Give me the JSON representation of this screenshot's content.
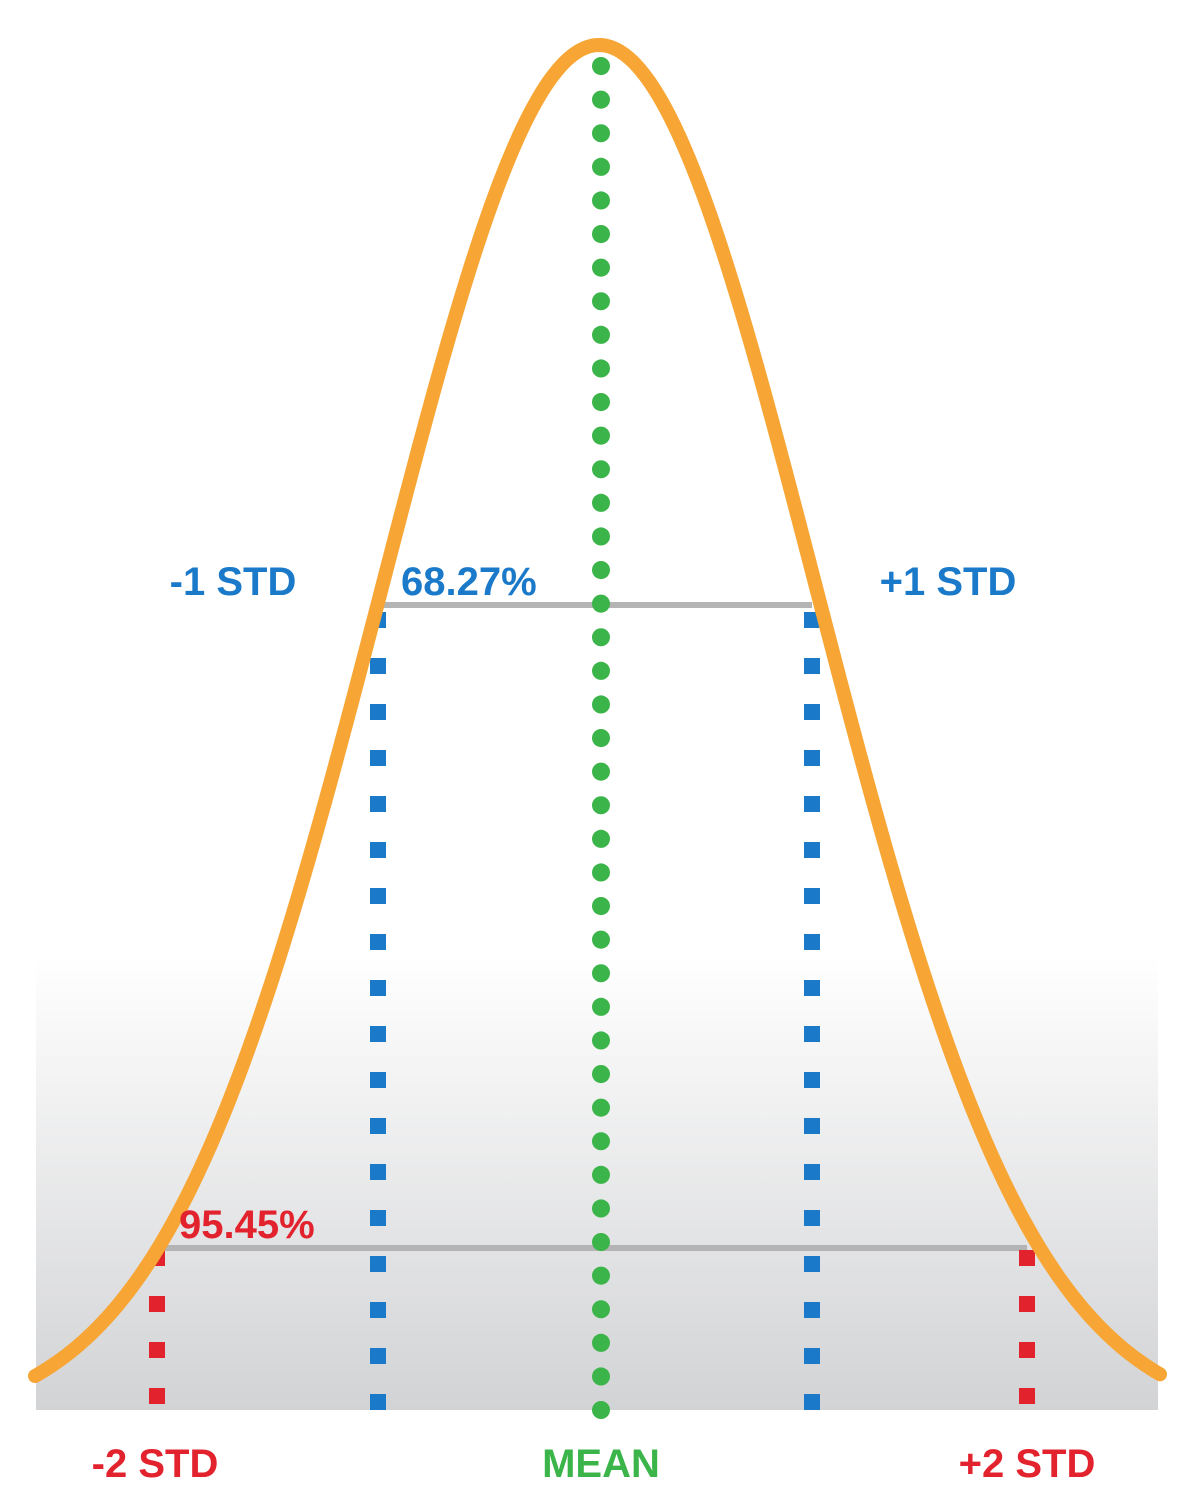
{
  "labels": {
    "minus_1_std": "-1 STD",
    "plus_1_std": "+1 STD",
    "minus_2_std": "-2 STD",
    "plus_2_std": "+2 STD",
    "mean": "MEAN",
    "pct_1_std": "68.27%",
    "pct_2_std": "95.45%"
  },
  "colors": {
    "curve": "#F7A635",
    "mean_line": "#3BB54A",
    "std1_line": "#1A7AC9",
    "std2_line": "#E2232E",
    "band_line": "#B4B4B4",
    "floor_top": "#FFFFFF",
    "floor_bottom": "#D2D3D5"
  }
}
